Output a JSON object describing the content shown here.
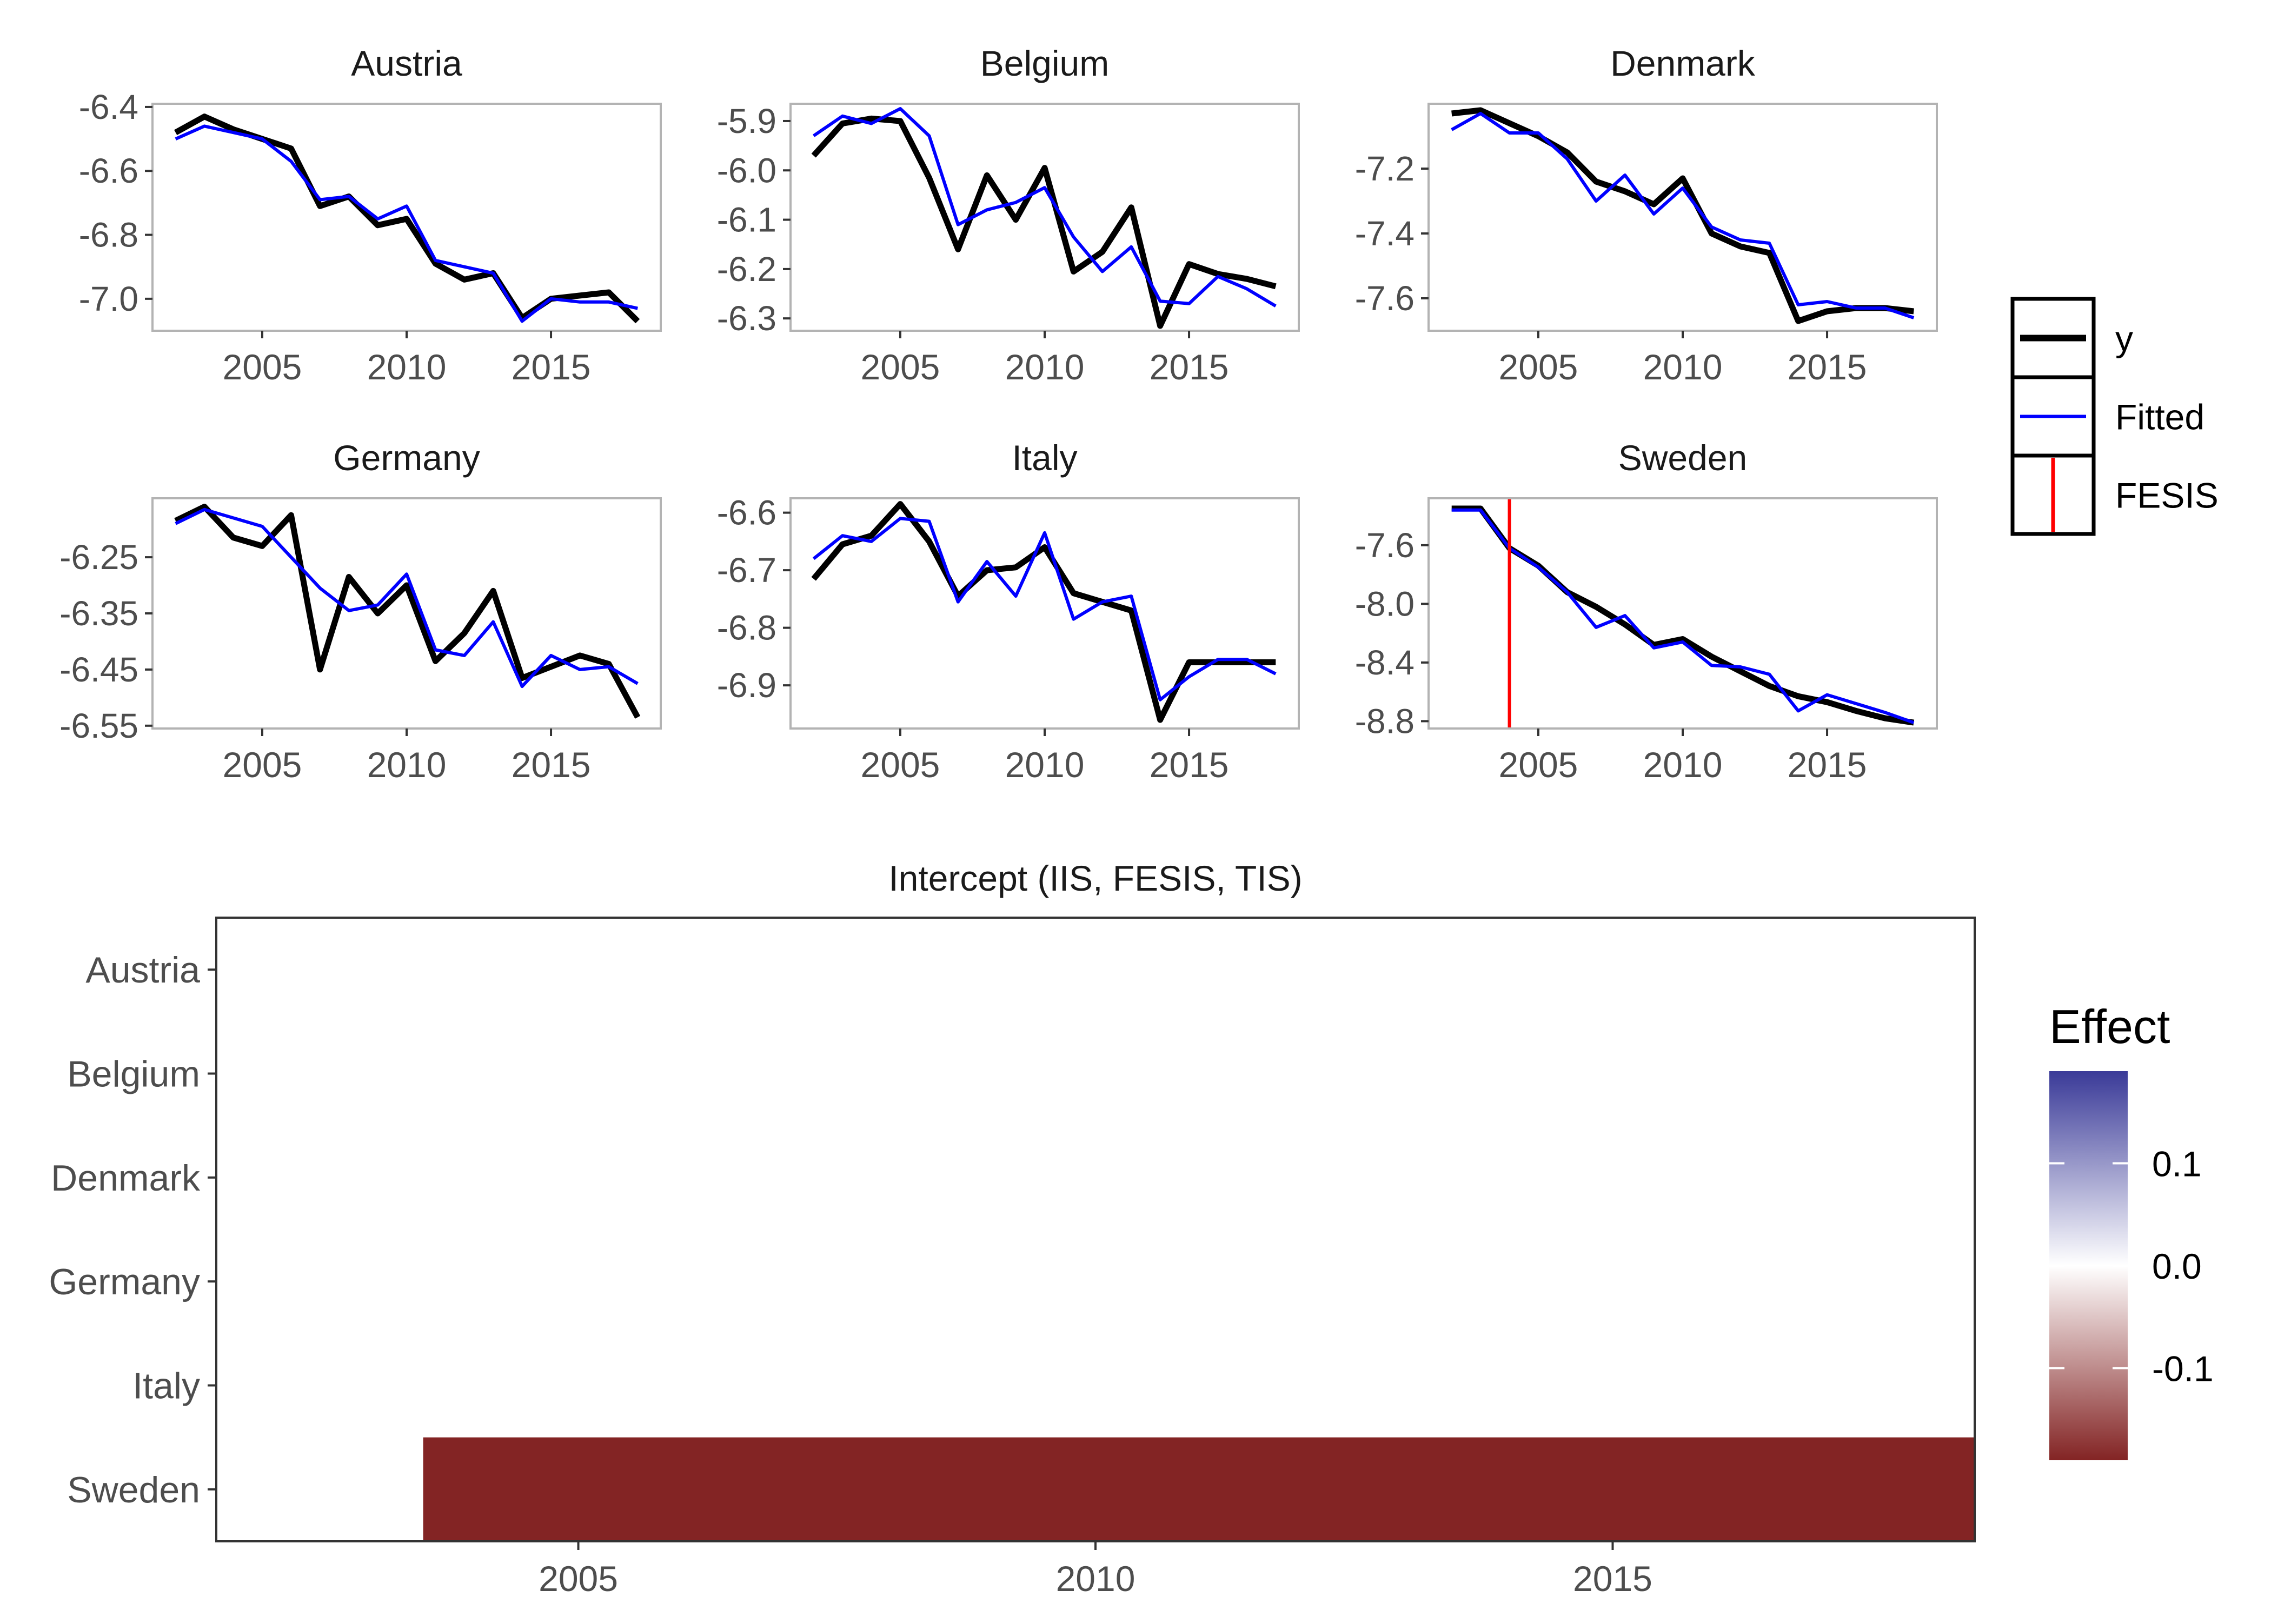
{
  "chart_data": [
    {
      "type": "line",
      "title": "Austria",
      "x": [
        2002,
        2003,
        2004,
        2005,
        2006,
        2007,
        2008,
        2009,
        2010,
        2011,
        2012,
        2013,
        2014,
        2015,
        2016,
        2017,
        2018
      ],
      "series": [
        {
          "name": "y",
          "values": [
            -6.48,
            -6.43,
            -6.47,
            -6.5,
            -6.53,
            -6.71,
            -6.68,
            -6.77,
            -6.75,
            -6.89,
            -6.94,
            -6.92,
            -7.06,
            -7.0,
            -6.99,
            -6.98,
            -7.07
          ]
        },
        {
          "name": "Fitted",
          "values": [
            -6.5,
            -6.46,
            -6.48,
            -6.5,
            -6.57,
            -6.69,
            -6.68,
            -6.75,
            -6.71,
            -6.88,
            -6.9,
            -6.92,
            -7.07,
            -7.0,
            -7.01,
            -7.01,
            -7.03
          ]
        }
      ],
      "xlim": [
        2001.2,
        2018.8
      ],
      "ylim": [
        -7.1,
        -6.39
      ],
      "x_ticks": [
        2005,
        2010,
        2015
      ],
      "y_ticks": [
        -6.4,
        -6.6,
        -6.8,
        -7.0
      ],
      "y_tick_labels": [
        "-6.4",
        "-6.6",
        "-6.8",
        "-7.0"
      ],
      "fesis": []
    },
    {
      "type": "line",
      "title": "Belgium",
      "x": [
        2002,
        2003,
        2004,
        2005,
        2006,
        2007,
        2008,
        2009,
        2010,
        2011,
        2012,
        2013,
        2014,
        2015,
        2016,
        2017,
        2018
      ],
      "series": [
        {
          "name": "y",
          "values": [
            -5.97,
            -5.905,
            -5.895,
            -5.9,
            -6.015,
            -6.16,
            -6.01,
            -6.1,
            -5.995,
            -6.205,
            -6.165,
            -6.075,
            -6.315,
            -6.19,
            -6.21,
            -6.22,
            -6.235
          ]
        },
        {
          "name": "Fitted",
          "values": [
            -5.93,
            -5.89,
            -5.905,
            -5.875,
            -5.93,
            -6.11,
            -6.08,
            -6.065,
            -6.035,
            -6.135,
            -6.205,
            -6.155,
            -6.265,
            -6.27,
            -6.215,
            -6.24,
            -6.275
          ]
        }
      ],
      "xlim": [
        2001.2,
        2018.8
      ],
      "ylim": [
        -6.325,
        -5.865
      ],
      "x_ticks": [
        2005,
        2010,
        2015
      ],
      "y_ticks": [
        -5.9,
        -6.0,
        -6.1,
        -6.2,
        -6.3
      ],
      "y_tick_labels": [
        "-5.9",
        "-6.0",
        "-6.1",
        "-6.2",
        "-6.3"
      ],
      "fesis": []
    },
    {
      "type": "line",
      "title": "Denmark",
      "x": [
        2002,
        2003,
        2004,
        2005,
        2006,
        2007,
        2008,
        2009,
        2010,
        2011,
        2012,
        2013,
        2014,
        2015,
        2016,
        2017,
        2018
      ],
      "series": [
        {
          "name": "y",
          "values": [
            -7.03,
            -7.02,
            -7.06,
            -7.1,
            -7.15,
            -7.24,
            -7.27,
            -7.31,
            -7.23,
            -7.4,
            -7.44,
            -7.46,
            -7.67,
            -7.64,
            -7.63,
            -7.63,
            -7.64
          ]
        },
        {
          "name": "Fitted",
          "values": [
            -7.08,
            -7.03,
            -7.09,
            -7.09,
            -7.17,
            -7.3,
            -7.22,
            -7.34,
            -7.26,
            -7.38,
            -7.42,
            -7.43,
            -7.62,
            -7.61,
            -7.63,
            -7.63,
            -7.66
          ]
        }
      ],
      "xlim": [
        2001.2,
        2018.8
      ],
      "ylim": [
        -7.7,
        -7.0
      ],
      "x_ticks": [
        2005,
        2010,
        2015
      ],
      "y_ticks": [
        -7.2,
        -7.4,
        -7.6
      ],
      "y_tick_labels": [
        "-7.2",
        "-7.4",
        "-7.6"
      ],
      "fesis": []
    },
    {
      "type": "line",
      "title": "Germany",
      "x": [
        2002,
        2003,
        2004,
        2005,
        2006,
        2007,
        2008,
        2009,
        2010,
        2011,
        2012,
        2013,
        2014,
        2015,
        2016,
        2017,
        2018
      ],
      "series": [
        {
          "name": "y",
          "values": [
            -6.185,
            -6.16,
            -6.215,
            -6.23,
            -6.175,
            -6.45,
            -6.285,
            -6.35,
            -6.3,
            -6.435,
            -6.385,
            -6.31,
            -6.465,
            -6.445,
            -6.425,
            -6.44,
            -6.535
          ]
        },
        {
          "name": "Fitted",
          "values": [
            -6.19,
            -6.165,
            -6.18,
            -6.195,
            -6.25,
            -6.305,
            -6.345,
            -6.335,
            -6.28,
            -6.415,
            -6.425,
            -6.365,
            -6.48,
            -6.425,
            -6.45,
            -6.445,
            -6.475
          ]
        }
      ],
      "xlim": [
        2001.2,
        2018.8
      ],
      "ylim": [
        -6.555,
        -6.145
      ],
      "x_ticks": [
        2005,
        2010,
        2015
      ],
      "y_ticks": [
        -6.25,
        -6.35,
        -6.45,
        -6.55
      ],
      "y_tick_labels": [
        "-6.25",
        "-6.35",
        "-6.45",
        "-6.55"
      ],
      "fesis": []
    },
    {
      "type": "line",
      "title": "Italy",
      "x": [
        2002,
        2003,
        2004,
        2005,
        2006,
        2007,
        2008,
        2009,
        2010,
        2011,
        2012,
        2013,
        2014,
        2015,
        2016,
        2017,
        2018
      ],
      "series": [
        {
          "name": "y",
          "values": [
            -6.715,
            -6.655,
            -6.64,
            -6.585,
            -6.65,
            -6.745,
            -6.7,
            -6.695,
            -6.66,
            -6.74,
            -6.755,
            -6.77,
            -6.96,
            -6.86,
            -6.86,
            -6.86,
            -6.86
          ]
        },
        {
          "name": "Fitted",
          "values": [
            -6.68,
            -6.64,
            -6.65,
            -6.61,
            -6.615,
            -6.755,
            -6.685,
            -6.745,
            -6.635,
            -6.785,
            -6.755,
            -6.745,
            -6.925,
            -6.885,
            -6.855,
            -6.855,
            -6.88
          ]
        }
      ],
      "xlim": [
        2001.2,
        2018.8
      ],
      "ylim": [
        -6.975,
        -6.575
      ],
      "x_ticks": [
        2005,
        2010,
        2015
      ],
      "y_ticks": [
        -6.6,
        -6.7,
        -6.8,
        -6.9
      ],
      "y_tick_labels": [
        "-6.6",
        "-6.7",
        "-6.8",
        "-6.9"
      ],
      "fesis": []
    },
    {
      "type": "line",
      "title": "Sweden",
      "x": [
        2002,
        2003,
        2004,
        2005,
        2006,
        2007,
        2008,
        2009,
        2010,
        2011,
        2012,
        2013,
        2014,
        2015,
        2016,
        2017,
        2018
      ],
      "series": [
        {
          "name": "y",
          "values": [
            -7.35,
            -7.35,
            -7.62,
            -7.74,
            -7.92,
            -8.02,
            -8.14,
            -8.28,
            -8.24,
            -8.36,
            -8.46,
            -8.56,
            -8.63,
            -8.67,
            -8.73,
            -8.78,
            -8.81
          ]
        },
        {
          "name": "Fitted",
          "values": [
            -7.36,
            -7.36,
            -7.62,
            -7.75,
            -7.92,
            -8.16,
            -8.08,
            -8.3,
            -8.26,
            -8.42,
            -8.43,
            -8.48,
            -8.73,
            -8.62,
            -8.68,
            -8.74,
            -8.81
          ]
        }
      ],
      "xlim": [
        2001.2,
        2018.8
      ],
      "ylim": [
        -8.85,
        -7.28
      ],
      "x_ticks": [
        2005,
        2010,
        2015
      ],
      "y_ticks": [
        -7.6,
        -8.0,
        -8.4,
        -8.8
      ],
      "y_tick_labels": [
        "-7.6",
        "-8.0",
        "-8.4",
        "-8.8"
      ],
      "fesis": [
        2004
      ]
    },
    {
      "type": "heatmap",
      "title": "Intercept (IIS, FESIS, TIS)",
      "rows": [
        "Austria",
        "Belgium",
        "Denmark",
        "Germany",
        "Italy",
        "Sweden"
      ],
      "xlim": [
        2001.5,
        2018.5
      ],
      "x_ticks": [
        2005,
        2010,
        2015
      ],
      "cells": [
        {
          "row": "Sweden",
          "x_start": 2003.5,
          "x_end": 2018.5,
          "value": -0.19
        }
      ],
      "legend": {
        "title": "Effect",
        "range": [
          -0.19,
          0.19
        ],
        "ticks": [
          0.1,
          0.0,
          -0.1
        ],
        "tick_labels": [
          "0.1",
          "0.0",
          "-0.1"
        ],
        "low_color": "#832424",
        "mid_color": "#ffffff",
        "high_color": "#3a3a98"
      }
    }
  ],
  "legend": {
    "items": [
      {
        "label": "y",
        "kind": "thick-line",
        "color": "#000000"
      },
      {
        "label": "Fitted",
        "kind": "line",
        "color": "#0000ff"
      },
      {
        "label": "FESIS",
        "kind": "vline",
        "color": "#ff0000"
      }
    ]
  },
  "colors": {
    "y": "#000000",
    "fitted": "#0000ff",
    "fesis": "#ff0000",
    "panel_border": "#b3b3b3",
    "axis_text": "#4d4d4d"
  }
}
